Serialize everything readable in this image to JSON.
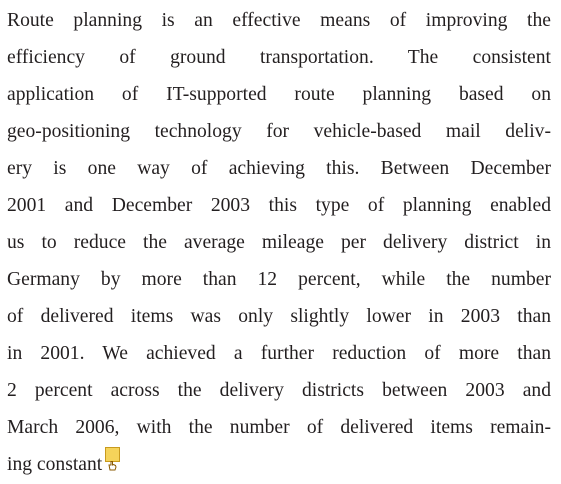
{
  "paragraph": {
    "lines": [
      "Route planning is an effective means of improving the",
      "efficiency of ground transportation. The consistent",
      "application of IT-supported route planning based on",
      "geo-positioning technology for vehicle-based mail deliv-",
      "ery is one way of achieving this. Between December",
      "2001 and December 2003 this type of planning enabled",
      "us to reduce the average mileage per delivery district in",
      "Germany by more than 12 percent, while the number",
      "of delivered items was only slightly lower in 2003 than",
      "in 2001. We achieved a further reduction of more than",
      "2 percent across the delivery districts between 2003 and",
      "March 2006, with the number of delivered items remain-",
      "ing constant"
    ]
  }
}
